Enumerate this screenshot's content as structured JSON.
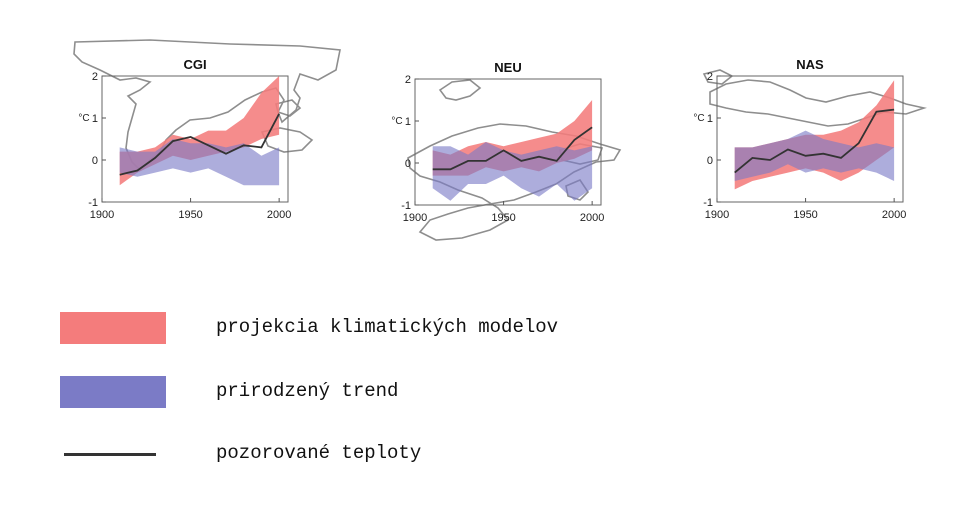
{
  "colors": {
    "model": "#f47c7c",
    "natural": "#7b7bc6",
    "overlap": "#a979c3",
    "observed": "#333333",
    "map": "#8e8e8e"
  },
  "chart_data": [
    {
      "type": "area",
      "title": "CGI",
      "ylabel": "°C",
      "xlim": [
        1900,
        2005
      ],
      "ylim": [
        -1,
        2
      ],
      "xticks": [
        "1900",
        "1950",
        "2000"
      ],
      "yticks": [
        "-1",
        "0",
        "1",
        "2"
      ],
      "x": [
        1910,
        1920,
        1930,
        1940,
        1950,
        1960,
        1970,
        1980,
        1990,
        2000
      ],
      "series": [
        {
          "name": "projekcia klimatických modelov",
          "lower": [
            -0.6,
            -0.3,
            -0.1,
            0.1,
            0.0,
            0.1,
            0.2,
            0.3,
            0.5,
            0.6
          ],
          "upper": [
            0.2,
            0.2,
            0.3,
            0.6,
            0.5,
            0.7,
            0.7,
            1.0,
            1.6,
            2.0
          ]
        },
        {
          "name": "prirodzený trend",
          "lower": [
            -0.3,
            -0.4,
            -0.3,
            -0.2,
            -0.3,
            -0.2,
            -0.4,
            -0.6,
            -0.6,
            -0.6
          ],
          "upper": [
            0.3,
            0.2,
            0.2,
            0.5,
            0.4,
            0.4,
            0.3,
            0.4,
            0.1,
            0.3
          ]
        },
        {
          "name": "pozorované teploty",
          "values": [
            -0.35,
            -0.25,
            0.05,
            0.45,
            0.55,
            0.35,
            0.15,
            0.35,
            0.3,
            1.1
          ]
        }
      ]
    },
    {
      "type": "area",
      "title": "NEU",
      "ylabel": "°C",
      "xlim": [
        1900,
        2005
      ],
      "ylim": [
        -1,
        2
      ],
      "xticks": [
        "1900",
        "1950",
        "2000"
      ],
      "yticks": [
        "-1",
        "0",
        "1",
        "2"
      ],
      "x": [
        1910,
        1920,
        1930,
        1940,
        1950,
        1960,
        1970,
        1980,
        1990,
        2000
      ],
      "series": [
        {
          "name": "projekcia klimatických modelov",
          "lower": [
            -0.3,
            -0.3,
            -0.3,
            -0.1,
            -0.2,
            -0.1,
            -0.2,
            0.0,
            0.1,
            0.3
          ],
          "upper": [
            0.3,
            0.2,
            0.4,
            0.5,
            0.4,
            0.5,
            0.6,
            0.7,
            1.0,
            1.5
          ]
        },
        {
          "name": "prirodzený trend",
          "lower": [
            -0.6,
            -0.9,
            -0.5,
            -0.5,
            -0.3,
            -0.6,
            -0.8,
            -0.5,
            -0.9,
            -0.6
          ],
          "upper": [
            0.4,
            0.4,
            0.2,
            0.5,
            0.3,
            0.2,
            0.3,
            0.4,
            0.3,
            0.4
          ]
        },
        {
          "name": "pozorované teploty",
          "values": [
            -0.15,
            -0.15,
            0.05,
            0.05,
            0.3,
            0.05,
            0.15,
            0.05,
            0.55,
            0.85
          ]
        }
      ]
    },
    {
      "type": "area",
      "title": "NAS",
      "ylabel": "°C",
      "xlim": [
        1900,
        2005
      ],
      "ylim": [
        -1,
        2
      ],
      "xticks": [
        "1900",
        "1950",
        "2000"
      ],
      "yticks": [
        "-1",
        "0",
        "1",
        "2"
      ],
      "x": [
        1910,
        1920,
        1930,
        1940,
        1950,
        1960,
        1970,
        1980,
        1990,
        2000
      ],
      "series": [
        {
          "name": "projekcia klimatických modelov",
          "lower": [
            -0.7,
            -0.5,
            -0.4,
            -0.3,
            -0.2,
            -0.3,
            -0.5,
            -0.3,
            0.0,
            0.3
          ],
          "upper": [
            0.3,
            0.3,
            0.4,
            0.5,
            0.6,
            0.6,
            0.7,
            0.9,
            1.3,
            1.9
          ]
        },
        {
          "name": "prirodzený trend",
          "lower": [
            -0.5,
            -0.4,
            -0.3,
            -0.1,
            -0.3,
            -0.2,
            -0.3,
            -0.2,
            -0.3,
            -0.5
          ],
          "upper": [
            0.3,
            0.3,
            0.4,
            0.5,
            0.7,
            0.5,
            0.4,
            0.3,
            0.4,
            0.3
          ]
        },
        {
          "name": "pozorované teploty",
          "values": [
            -0.3,
            0.05,
            0.0,
            0.25,
            0.1,
            0.15,
            0.05,
            0.4,
            1.15,
            1.2
          ]
        }
      ]
    }
  ],
  "legend": {
    "model_label": "projekcia klimatických modelov",
    "natural_label": "prirodzený trend",
    "observed_label": "pozorované teploty"
  }
}
